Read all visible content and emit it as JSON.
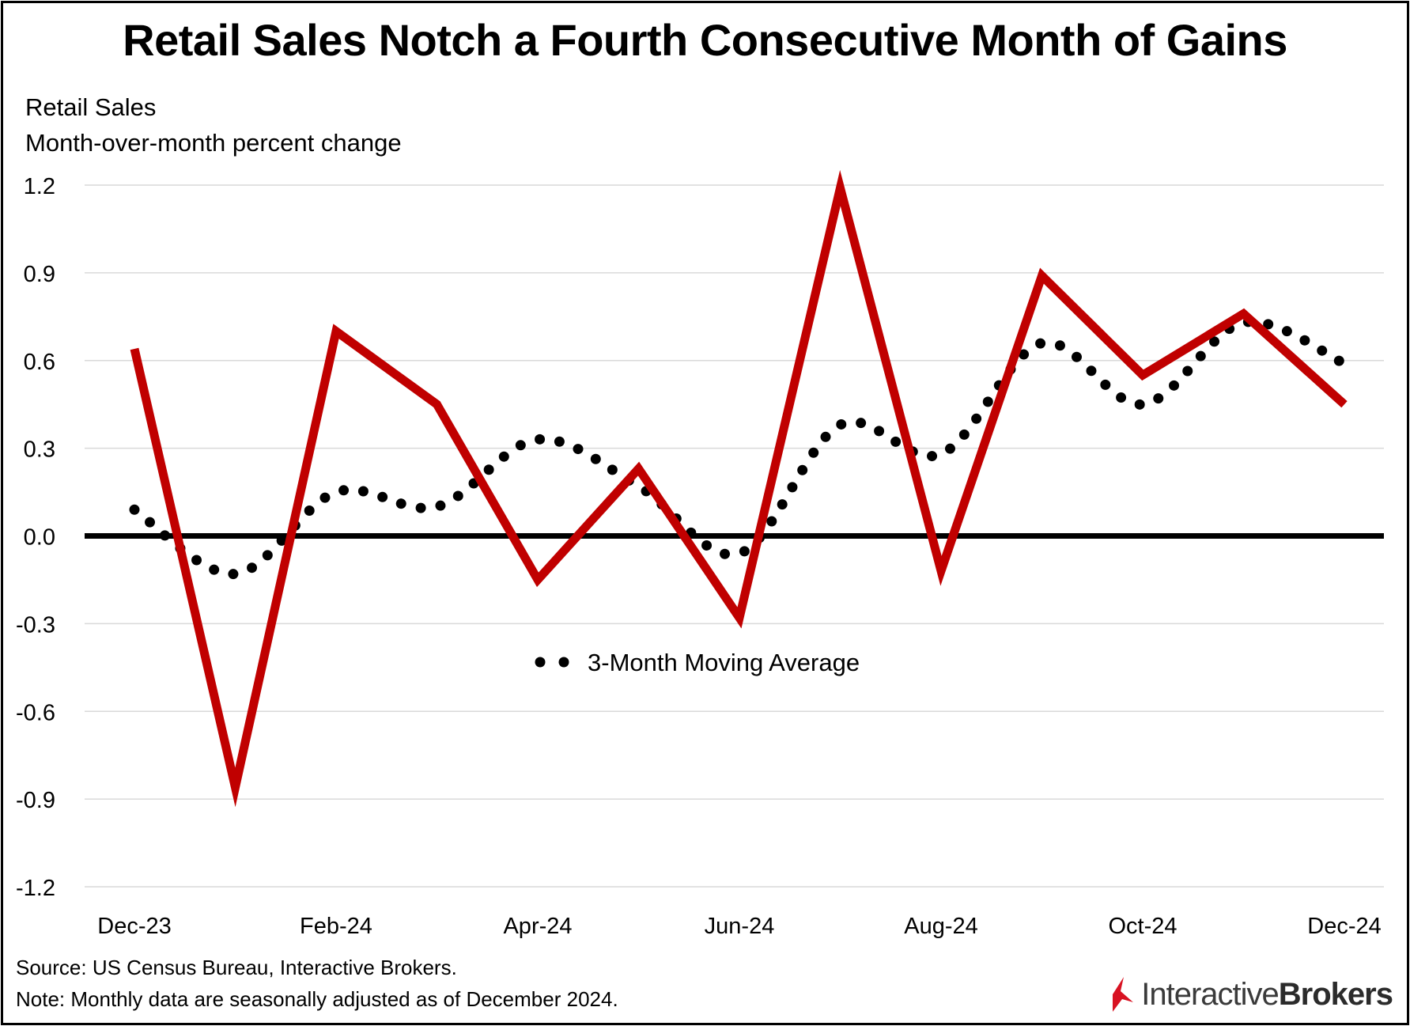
{
  "title": "Retail Sales Notch a Fourth Consecutive Month of Gains",
  "subtitle_line1": "Retail Sales",
  "subtitle_line2": "Month-over-month percent change",
  "source": "Source: US Census Bureau, Interactive Brokers.",
  "note": "Note: Monthly data are seasonally adjusted as of December 2024.",
  "logo": {
    "part1": "Interactive",
    "part2": "Brokers"
  },
  "colors": {
    "series_line": "#c00000",
    "moving_average_dots": "#000000",
    "zero_line": "#000000",
    "gridline": "#d9d9d9"
  },
  "chart_data": {
    "type": "line",
    "x": [
      "Dec-23",
      "Jan-24",
      "Feb-24",
      "Mar-24",
      "Apr-24",
      "May-24",
      "Jun-24",
      "Jul-24",
      "Aug-24",
      "Sep-24",
      "Oct-24",
      "Nov-24",
      "Dec-24"
    ],
    "x_tick_labels": [
      "Dec-23",
      "Feb-24",
      "Apr-24",
      "Jun-24",
      "Aug-24",
      "Oct-24",
      "Dec-24"
    ],
    "ylim": [
      -1.2,
      1.2
    ],
    "y_ticks": [
      "1.2",
      "0.9",
      "0.6",
      "0.3",
      "0.0",
      "-0.3",
      "-0.6",
      "-0.9",
      "-1.2"
    ],
    "y_tick_values": [
      1.2,
      0.9,
      0.6,
      0.3,
      0.0,
      -0.3,
      -0.6,
      -0.9,
      -1.2
    ],
    "grid": true,
    "legend": {
      "position": "center",
      "entries": [
        "3-Month Moving Average"
      ]
    },
    "series": [
      {
        "style": "solid-line",
        "values": [
          0.64,
          -0.86,
          0.7,
          0.45,
          -0.15,
          0.23,
          -0.28,
          1.19,
          -0.12,
          0.89,
          0.55,
          0.76,
          0.45
        ]
      },
      {
        "name": "3-Month Moving Average",
        "style": "dotted",
        "values": [
          0.09,
          -0.13,
          0.15,
          0.1,
          0.33,
          0.17,
          -0.06,
          0.38,
          0.28,
          0.66,
          0.45,
          0.73,
          0.59
        ]
      }
    ]
  }
}
